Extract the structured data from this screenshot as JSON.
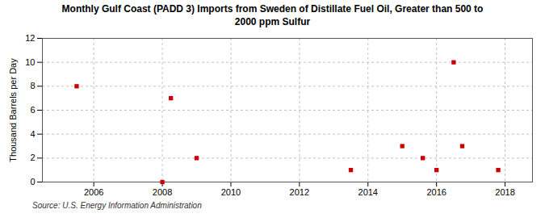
{
  "chart_data": {
    "type": "scatter",
    "title": "Monthly Gulf Coast (PADD 3) Imports from Sweden of Distillate Fuel Oil, Greater than 500 to\n2000 ppm Sulfur",
    "ylabel": "Thousand Barrels per Day",
    "source": "Source: U.S. Energy Information Administration",
    "x": [
      2005.5,
      2008.0,
      2008.25,
      2009.0,
      2013.5,
      2015.0,
      2015.6,
      2016.0,
      2016.5,
      2016.75,
      2017.8
    ],
    "values": [
      8,
      0,
      7,
      2,
      1,
      3,
      2,
      1,
      10,
      3,
      1
    ],
    "color": "#cc0000",
    "marker": "square",
    "xlim": [
      2004.5,
      2018.8
    ],
    "ylim": [
      0,
      12
    ],
    "xticks": [
      2006,
      2008,
      2010,
      2012,
      2014,
      2016,
      2018
    ],
    "yticks": [
      0,
      2,
      4,
      6,
      8,
      10,
      12
    ],
    "grid": true
  }
}
